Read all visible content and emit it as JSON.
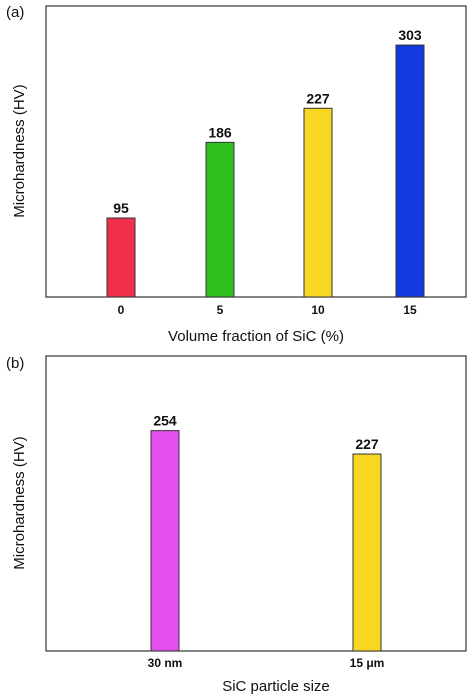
{
  "chart_data": [
    {
      "panel": "(a)",
      "type": "bar",
      "categories": [
        "0",
        "5",
        "10",
        "15"
      ],
      "values": [
        95,
        186,
        227,
        303
      ],
      "data_labels": [
        "95",
        "186",
        "227",
        "303"
      ],
      "colors": [
        "#f0304a",
        "#2fc21f",
        "#f7d722",
        "#1339e0"
      ],
      "title": "",
      "xlabel": "Volume fraction of SiC (%)",
      "ylabel": "Microhardness (HV)",
      "ylim": [
        0,
        350
      ],
      "grid": false,
      "legend": "none"
    },
    {
      "panel": "(b)",
      "type": "bar",
      "categories": [
        "30 nm",
        "15 μm"
      ],
      "values": [
        254,
        227
      ],
      "data_labels": [
        "254",
        "227"
      ],
      "colors": [
        "#e450f0",
        "#f7d722"
      ],
      "title": "",
      "xlabel": "SiC particle size",
      "ylabel": "Microhardness (HV)",
      "ylim": [
        0,
        340
      ],
      "grid": false,
      "legend": "none"
    }
  ]
}
